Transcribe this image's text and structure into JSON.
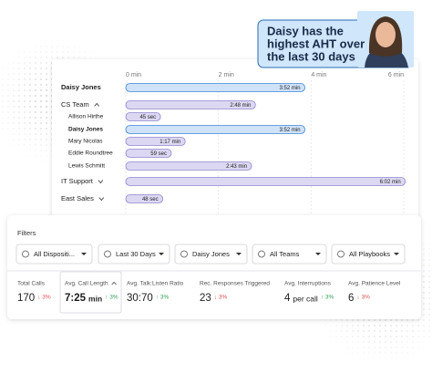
{
  "callout": {
    "lines": [
      "Daisy has the",
      "highest AHT over",
      "the last 30 days"
    ]
  },
  "chart_data": {
    "type": "bar",
    "orientation": "horizontal",
    "categories": [
      "Daisy Jones",
      "CS Team",
      "Allison Hirthe",
      "Daisy Jones",
      "Mary Nicolas",
      "Eddie Roundtree",
      "Lewis Schmitt",
      "IT Support",
      "East Sales"
    ],
    "values": [
      3.8667,
      2.8,
      0.75,
      3.8667,
      1.2833,
      0.9833,
      2.7167,
      6.0333,
      0.8
    ],
    "value_labels": [
      "3:52 min",
      "2:48 min",
      "45 sec",
      "3:52 min",
      "1:17 min",
      "59 sec",
      "2:43 min",
      "6:02 min",
      "48 sec"
    ],
    "colors": [
      "#cfe2f8",
      "#dcd8f2",
      "#dcd8f2",
      "#cfe2f8",
      "#dcd8f2",
      "#dcd8f2",
      "#dcd8f2",
      "#dcd8f2",
      "#dcd8f2"
    ],
    "xlim": [
      0,
      6
    ],
    "xticks": [
      {
        "value": 0,
        "label": "0 min"
      },
      {
        "value": 2,
        "label": "2 min"
      },
      {
        "value": 4,
        "label": "4 min"
      },
      {
        "value": 6,
        "label": "6 min"
      }
    ],
    "grid": true
  },
  "filters": {
    "title": "Filters",
    "options": [
      "All Dispositi...",
      "Last 30 Days",
      "Daisy Jones",
      "All Teams",
      "All Playbooks"
    ]
  },
  "metrics": [
    {
      "label": "Total Calls",
      "value": "170",
      "delta": "↓ 3%",
      "trend": "down"
    },
    {
      "label": "Avg. Call Length",
      "value": "7:25",
      "unit": "min",
      "delta": "↑ 3%",
      "trend": "up"
    },
    {
      "label": "Avg. Talk:Listen Ratio",
      "value": "30:70",
      "delta": "↑ 3%",
      "trend": "up"
    },
    {
      "label": "Rec. Responses Triggered",
      "value": "23",
      "delta": "↓ 3%",
      "trend": "down"
    },
    {
      "label": "Avg. Interruptions",
      "value": "4",
      "unit": "per call",
      "delta": "↑ 3%",
      "trend": "up"
    },
    {
      "label": "Avg. Patience Level",
      "value": "6",
      "delta": "↓ 3%",
      "trend": "down"
    }
  ]
}
